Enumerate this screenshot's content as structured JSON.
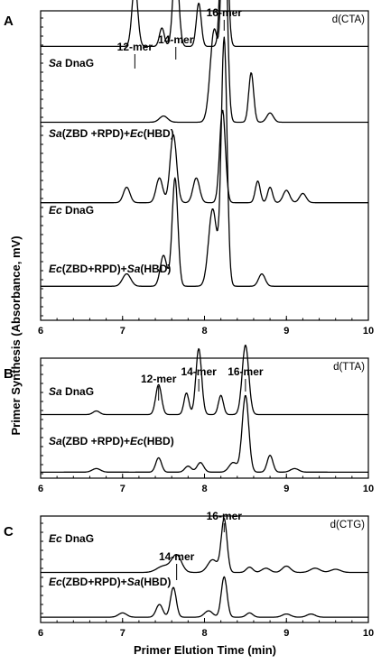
{
  "figure": {
    "y_axis_title": "Primer Synthesis (Absorbance, mV)",
    "x_axis_title": "Primer Elution Time (min)"
  },
  "chart_data": [
    {
      "type": "line",
      "panel": "A",
      "template": "d(CTA)",
      "xlim": [
        6,
        10
      ],
      "x_ticks": [
        6,
        7,
        8,
        9,
        10
      ],
      "peak_labels": [
        {
          "text": "12-mer",
          "x": 7.15
        },
        {
          "text": "14-mer",
          "x": 7.65
        },
        {
          "text": "16-mer",
          "x": 8.24
        }
      ],
      "series": [
        {
          "label": [
            {
              "t": "Sa",
              "i": true
            },
            {
              "t": " DnaG",
              "i": false
            }
          ],
          "baseline_frac": 0.115,
          "peaks": [
            {
              "x": 7.15,
              "h": 0.2,
              "w": 0.035
            },
            {
              "x": 7.48,
              "h": 0.06,
              "w": 0.03
            },
            {
              "x": 7.65,
              "h": 0.28,
              "w": 0.035
            },
            {
              "x": 7.93,
              "h": 0.14,
              "w": 0.03
            },
            {
              "x": 8.24,
              "h": 0.75,
              "w": 0.035
            }
          ]
        },
        {
          "label": [
            {
              "t": "Sa",
              "i": true
            },
            {
              "t": "(ZBD +RPD)+",
              "i": false
            },
            {
              "t": "Ec",
              "i": true
            },
            {
              "t": "(HBD)",
              "i": false
            }
          ],
          "baseline_frac": 0.36,
          "peaks": [
            {
              "x": 7.5,
              "h": 0.02,
              "w": 0.05
            },
            {
              "x": 8.12,
              "h": 0.3,
              "w": 0.05
            },
            {
              "x": 8.24,
              "h": 0.73,
              "w": 0.035
            },
            {
              "x": 8.57,
              "h": 0.16,
              "w": 0.03
            },
            {
              "x": 8.8,
              "h": 0.03,
              "w": 0.04
            }
          ]
        },
        {
          "label": [
            {
              "t": "Ec",
              "i": true
            },
            {
              "t": " DnaG",
              "i": false
            }
          ],
          "baseline_frac": 0.62,
          "peaks": [
            {
              "x": 7.05,
              "h": 0.05,
              "w": 0.04
            },
            {
              "x": 7.45,
              "h": 0.08,
              "w": 0.04
            },
            {
              "x": 7.62,
              "h": 0.22,
              "w": 0.04
            },
            {
              "x": 7.9,
              "h": 0.08,
              "w": 0.04
            },
            {
              "x": 8.22,
              "h": 0.3,
              "w": 0.035
            },
            {
              "x": 8.65,
              "h": 0.07,
              "w": 0.03
            },
            {
              "x": 8.8,
              "h": 0.05,
              "w": 0.03
            },
            {
              "x": 9.0,
              "h": 0.04,
              "w": 0.04
            },
            {
              "x": 9.2,
              "h": 0.03,
              "w": 0.04
            }
          ]
        },
        {
          "label": [
            {
              "t": "Ec",
              "i": true
            },
            {
              "t": "(ZBD+RPD)+",
              "i": false
            },
            {
              "t": "Sa",
              "i": true
            },
            {
              "t": "(HBD)",
              "i": false
            }
          ],
          "baseline_frac": 0.89,
          "peaks": [
            {
              "x": 7.05,
              "h": 0.04,
              "w": 0.05
            },
            {
              "x": 7.5,
              "h": 0.1,
              "w": 0.04
            },
            {
              "x": 7.64,
              "h": 0.35,
              "w": 0.035
            },
            {
              "x": 8.1,
              "h": 0.25,
              "w": 0.05
            },
            {
              "x": 8.24,
              "h": 0.8,
              "w": 0.035
            },
            {
              "x": 8.7,
              "h": 0.04,
              "w": 0.04
            }
          ]
        }
      ]
    },
    {
      "type": "line",
      "panel": "B",
      "template": "d(TTA)",
      "xlim": [
        6,
        10
      ],
      "x_ticks": [
        6,
        7,
        8,
        9,
        10
      ],
      "peak_labels": [
        {
          "text": "12-mer",
          "x": 7.44
        },
        {
          "text": "14-mer",
          "x": 7.93
        },
        {
          "text": "16-mer",
          "x": 8.5
        }
      ],
      "series": [
        {
          "label": [
            {
              "t": "Sa",
              "i": true
            },
            {
              "t": " DnaG",
              "i": false
            }
          ],
          "baseline_frac": 0.47,
          "peaks": [
            {
              "x": 6.68,
              "h": 0.03,
              "w": 0.04
            },
            {
              "x": 7.44,
              "h": 0.25,
              "w": 0.035
            },
            {
              "x": 7.78,
              "h": 0.18,
              "w": 0.03
            },
            {
              "x": 7.93,
              "h": 0.55,
              "w": 0.035
            },
            {
              "x": 8.2,
              "h": 0.16,
              "w": 0.03
            },
            {
              "x": 8.5,
              "h": 0.58,
              "w": 0.04
            }
          ]
        },
        {
          "label": [
            {
              "t": "Sa",
              "i": true
            },
            {
              "t": "(ZBD +RPD)+",
              "i": false
            },
            {
              "t": "Ec",
              "i": true
            },
            {
              "t": "(HBD)",
              "i": false
            }
          ],
          "baseline_frac": 0.95,
          "peaks": [
            {
              "x": 6.68,
              "h": 0.03,
              "w": 0.05
            },
            {
              "x": 7.44,
              "h": 0.12,
              "w": 0.035
            },
            {
              "x": 7.8,
              "h": 0.05,
              "w": 0.04
            },
            {
              "x": 7.95,
              "h": 0.08,
              "w": 0.04
            },
            {
              "x": 8.35,
              "h": 0.08,
              "w": 0.05
            },
            {
              "x": 8.5,
              "h": 0.64,
              "w": 0.04
            },
            {
              "x": 8.8,
              "h": 0.14,
              "w": 0.035
            },
            {
              "x": 9.1,
              "h": 0.03,
              "w": 0.05
            }
          ]
        }
      ]
    },
    {
      "type": "line",
      "panel": "C",
      "template": "d(CTG)",
      "xlim": [
        6,
        10
      ],
      "x_ticks": [
        6,
        7,
        8,
        9,
        10
      ],
      "peak_labels": [
        {
          "text": "14-mer",
          "x": 7.66
        },
        {
          "text": "16-mer",
          "x": 8.24
        }
      ],
      "series": [
        {
          "label": [
            {
              "t": "Ec",
              "i": true
            },
            {
              "t": " DnaG",
              "i": false
            }
          ],
          "baseline_frac": 0.53,
          "peaks": [
            {
              "x": 7.5,
              "h": 0.06,
              "w": 0.08
            },
            {
              "x": 7.66,
              "h": 0.16,
              "w": 0.06
            },
            {
              "x": 8.1,
              "h": 0.12,
              "w": 0.06
            },
            {
              "x": 8.24,
              "h": 0.5,
              "w": 0.035
            },
            {
              "x": 8.55,
              "h": 0.05,
              "w": 0.04
            },
            {
              "x": 8.75,
              "h": 0.04,
              "w": 0.05
            },
            {
              "x": 9.0,
              "h": 0.06,
              "w": 0.05
            },
            {
              "x": 9.35,
              "h": 0.04,
              "w": 0.06
            },
            {
              "x": 9.6,
              "h": 0.03,
              "w": 0.06
            }
          ]
        },
        {
          "label": [
            {
              "t": "Ec",
              "i": true
            },
            {
              "t": "(ZBD+RPD)+",
              "i": false
            },
            {
              "t": "Sa",
              "i": true
            },
            {
              "t": "(HBD)",
              "i": false
            }
          ],
          "baseline_frac": 0.95,
          "peaks": [
            {
              "x": 7.0,
              "h": 0.04,
              "w": 0.05
            },
            {
              "x": 7.45,
              "h": 0.12,
              "w": 0.04
            },
            {
              "x": 7.62,
              "h": 0.28,
              "w": 0.035
            },
            {
              "x": 8.05,
              "h": 0.06,
              "w": 0.05
            },
            {
              "x": 8.24,
              "h": 0.38,
              "w": 0.035
            },
            {
              "x": 8.55,
              "h": 0.04,
              "w": 0.04
            },
            {
              "x": 9.0,
              "h": 0.03,
              "w": 0.05
            },
            {
              "x": 9.3,
              "h": 0.03,
              "w": 0.05
            }
          ]
        }
      ]
    }
  ]
}
